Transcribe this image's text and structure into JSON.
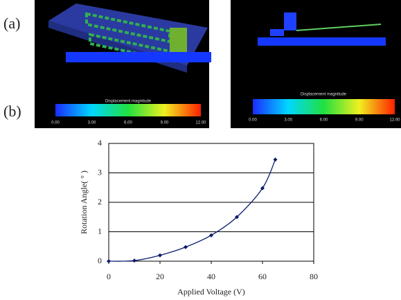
{
  "figure": {
    "label_a": "(a)",
    "label_b": "(b)",
    "images": [
      {
        "colorbar_title": "Displacement magnitude",
        "colorbar_ticks": [
          "0.00",
          "3.00",
          "6.00",
          "9.00",
          "12.00"
        ]
      },
      {
        "colorbar_title": "Displacement magnitude",
        "colorbar_ticks": [
          "0.00",
          "3.00",
          "6.00",
          "9.00",
          "12.00"
        ]
      }
    ]
  },
  "chart_data": {
    "type": "line",
    "x_label": "Applied Voltage (V)",
    "y_label": "Rotation Angle( ° )",
    "x": [
      0,
      10,
      20,
      30,
      40,
      50,
      60,
      65
    ],
    "values": [
      0,
      0.02,
      0.2,
      0.48,
      0.88,
      1.5,
      2.48,
      3.45
    ],
    "color": "#0a1a6e",
    "xlim": [
      0,
      80
    ],
    "xticks": [
      0,
      20,
      40,
      60,
      80
    ],
    "ylim": [
      0,
      4
    ],
    "yticks": [
      0,
      1,
      2,
      3,
      4
    ],
    "grid": true
  }
}
